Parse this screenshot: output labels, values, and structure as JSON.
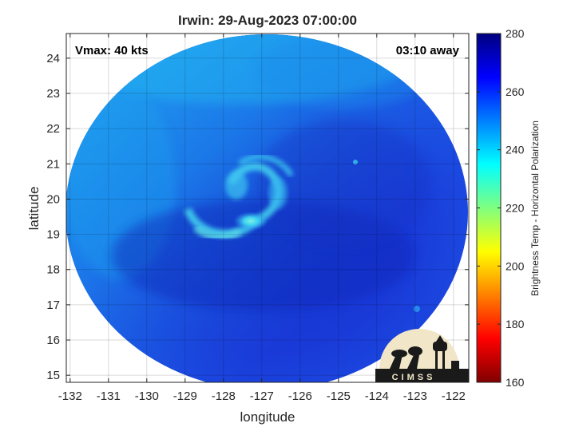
{
  "chart_data": {
    "type": "heatmap",
    "title": "Irwin: 29-Aug-2023 07:00:00",
    "xlabel": "longitude",
    "ylabel": "latitude",
    "xlim": [
      -132.1,
      -121.6
    ],
    "ylim": [
      14.8,
      24.7
    ],
    "x_ticks": [
      -132,
      -131,
      -130,
      -129,
      -128,
      -127,
      -126,
      -125,
      -124,
      -123,
      -122
    ],
    "y_ticks": [
      15,
      16,
      17,
      18,
      19,
      20,
      21,
      22,
      23,
      24
    ],
    "grid": true,
    "annotations": {
      "vmax": "Vmax: 40 kts",
      "time_away": "03:10 away"
    },
    "storm_center": {
      "lon": -126.9,
      "lat": 20.1
    },
    "colorbar": {
      "label": "Brightness Temp - Horizontal Polarization",
      "range": [
        160,
        280
      ],
      "ticks": [
        160,
        180,
        200,
        220,
        240,
        260,
        280
      ],
      "colormap": "jet"
    },
    "logo_text": "CIMSS"
  },
  "colors": {
    "background_field": "#1a3ad6",
    "cold_edge": "#19a8f0",
    "warm_core": "#37d8f0"
  }
}
